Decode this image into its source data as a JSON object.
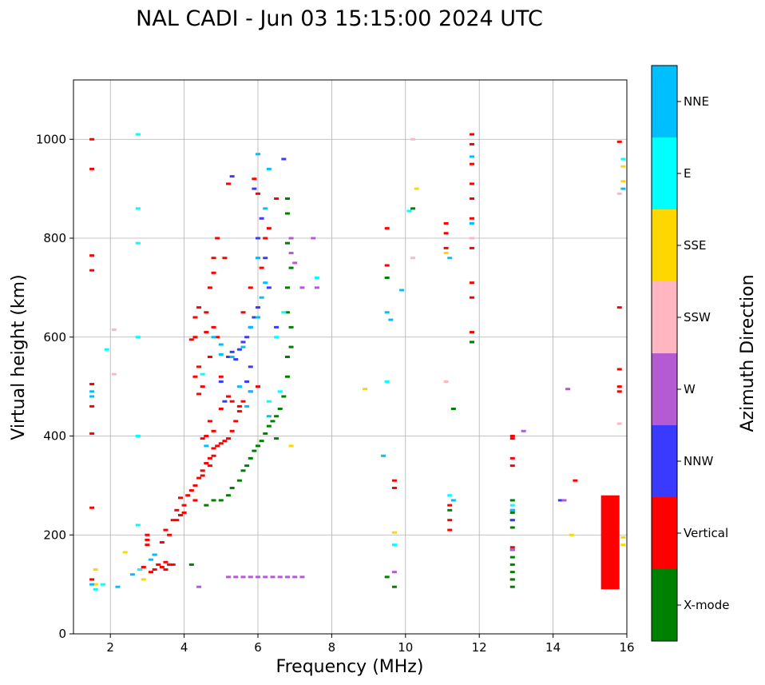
{
  "chart_data": {
    "type": "scatter",
    "title": "NAL CADI - Jun 03 15:15:00 2024 UTC",
    "xlabel": "Frequency (MHz)",
    "ylabel": "Virtual height (km)",
    "xlim": [
      1,
      16
    ],
    "ylim": [
      0,
      1120
    ],
    "x_ticks": [
      2,
      4,
      6,
      8,
      10,
      12,
      14,
      16
    ],
    "y_ticks": [
      0,
      200,
      400,
      600,
      800,
      1000
    ],
    "grid": true,
    "colorbar": {
      "label": "Azimuth Direction",
      "categories": [
        "X-mode",
        "Vertical",
        "NNW",
        "W",
        "SSW",
        "SSE",
        "E",
        "NNE"
      ],
      "colors": {
        "X-mode": "#008000",
        "Vertical": "#ff0000",
        "NNW": "#3a3aff",
        "W": "#b45ad2",
        "SSW": "#ffb6c1",
        "SSE": "#ffd700",
        "E": "#00ffff",
        "NNE": "#00bfff"
      }
    },
    "series": [
      {
        "name": "Vertical",
        "points": [
          [
            1.5,
            110
          ],
          [
            1.5,
            255
          ],
          [
            1.5,
            405
          ],
          [
            1.5,
            460
          ],
          [
            1.5,
            505
          ],
          [
            1.5,
            735
          ],
          [
            1.5,
            765
          ],
          [
            1.5,
            940
          ],
          [
            1.5,
            1000
          ],
          [
            2.8,
            130
          ],
          [
            2.9,
            135
          ],
          [
            3.0,
            180
          ],
          [
            3.1,
            125
          ],
          [
            3.2,
            130
          ],
          [
            3.3,
            140
          ],
          [
            3.4,
            135
          ],
          [
            3.5,
            130
          ],
          [
            3.5,
            145
          ],
          [
            3.6,
            140
          ],
          [
            3.7,
            140
          ],
          [
            3.0,
            190
          ],
          [
            3.0,
            200
          ],
          [
            3.2,
            160
          ],
          [
            3.4,
            185
          ],
          [
            3.5,
            210
          ],
          [
            3.6,
            200
          ],
          [
            3.7,
            230
          ],
          [
            3.8,
            250
          ],
          [
            3.8,
            230
          ],
          [
            3.9,
            240
          ],
          [
            3.9,
            275
          ],
          [
            4.0,
            245
          ],
          [
            4.0,
            260
          ],
          [
            4.1,
            280
          ],
          [
            4.2,
            290
          ],
          [
            4.3,
            300
          ],
          [
            4.3,
            270
          ],
          [
            4.4,
            315
          ],
          [
            4.5,
            320
          ],
          [
            4.5,
            330
          ],
          [
            4.6,
            345
          ],
          [
            4.7,
            340
          ],
          [
            4.7,
            355
          ],
          [
            4.8,
            360
          ],
          [
            4.8,
            375
          ],
          [
            4.9,
            380
          ],
          [
            5.0,
            385
          ],
          [
            5.1,
            390
          ],
          [
            5.2,
            395
          ],
          [
            5.3,
            410
          ],
          [
            5.4,
            430
          ],
          [
            5.5,
            450
          ],
          [
            5.6,
            470
          ],
          [
            5.8,
            490
          ],
          [
            6.0,
            500
          ],
          [
            5.2,
            480
          ],
          [
            5.0,
            455
          ],
          [
            4.8,
            410
          ],
          [
            4.6,
            400
          ],
          [
            4.5,
            395
          ],
          [
            4.7,
            430
          ],
          [
            4.4,
            485
          ],
          [
            4.4,
            540
          ],
          [
            4.3,
            520
          ],
          [
            4.5,
            500
          ],
          [
            4.6,
            610
          ],
          [
            4.3,
            600
          ],
          [
            4.2,
            595
          ],
          [
            4.3,
            640
          ],
          [
            4.4,
            660
          ],
          [
            4.6,
            650
          ],
          [
            4.7,
            700
          ],
          [
            4.8,
            730
          ],
          [
            4.8,
            760
          ],
          [
            4.9,
            800
          ],
          [
            5.1,
            760
          ],
          [
            4.8,
            620
          ],
          [
            4.7,
            560
          ],
          [
            5.3,
            470
          ],
          [
            5.5,
            460
          ],
          [
            5.0,
            520
          ],
          [
            4.9,
            600
          ],
          [
            5.6,
            650
          ],
          [
            5.8,
            700
          ],
          [
            6.1,
            740
          ],
          [
            6.2,
            800
          ],
          [
            6.0,
            890
          ],
          [
            5.2,
            910
          ],
          [
            5.9,
            920
          ],
          [
            6.3,
            820
          ],
          [
            6.5,
            880
          ],
          [
            9.7,
            310
          ],
          [
            9.7,
            295
          ],
          [
            9.5,
            820
          ],
          [
            9.5,
            745
          ],
          [
            11.2,
            210
          ],
          [
            11.2,
            230
          ],
          [
            11.2,
            260
          ],
          [
            11.1,
            830
          ],
          [
            11.1,
            810
          ],
          [
            11.1,
            780
          ],
          [
            11.8,
            590
          ],
          [
            11.8,
            610
          ],
          [
            11.8,
            680
          ],
          [
            11.8,
            710
          ],
          [
            11.8,
            780
          ],
          [
            11.8,
            800
          ],
          [
            11.8,
            840
          ],
          [
            11.8,
            880
          ],
          [
            11.8,
            910
          ],
          [
            11.8,
            950
          ],
          [
            11.8,
            990
          ],
          [
            11.8,
            1010
          ],
          [
            12.9,
            340
          ],
          [
            12.9,
            355
          ],
          [
            12.9,
            395
          ],
          [
            12.9,
            400
          ],
          [
            12.9,
            175
          ],
          [
            12.9,
            110
          ],
          [
            14.6,
            310
          ],
          [
            15.8,
            660
          ],
          [
            15.8,
            535
          ],
          [
            15.8,
            500
          ],
          [
            15.8,
            490
          ],
          [
            15.8,
            995
          ]
        ]
      },
      {
        "name": "X-mode",
        "points": [
          [
            5.0,
            270
          ],
          [
            5.2,
            280
          ],
          [
            5.3,
            295
          ],
          [
            5.5,
            310
          ],
          [
            5.6,
            330
          ],
          [
            5.7,
            340
          ],
          [
            5.8,
            355
          ],
          [
            5.9,
            370
          ],
          [
            6.0,
            380
          ],
          [
            6.1,
            390
          ],
          [
            6.2,
            405
          ],
          [
            6.3,
            420
          ],
          [
            6.4,
            430
          ],
          [
            6.5,
            440
          ],
          [
            6.6,
            455
          ],
          [
            6.7,
            480
          ],
          [
            6.8,
            520
          ],
          [
            6.8,
            560
          ],
          [
            6.9,
            580
          ],
          [
            6.9,
            620
          ],
          [
            6.8,
            650
          ],
          [
            6.8,
            700
          ],
          [
            6.9,
            740
          ],
          [
            6.8,
            790
          ],
          [
            6.8,
            850
          ],
          [
            6.8,
            880
          ],
          [
            4.6,
            260
          ],
          [
            4.8,
            270
          ],
          [
            6.5,
            395
          ],
          [
            9.5,
            115
          ],
          [
            9.7,
            95
          ],
          [
            9.5,
            720
          ],
          [
            10.2,
            860
          ],
          [
            11.3,
            455
          ],
          [
            11.2,
            250
          ],
          [
            12.9,
            95
          ],
          [
            12.9,
            110
          ],
          [
            12.9,
            125
          ],
          [
            12.9,
            140
          ],
          [
            12.9,
            155
          ],
          [
            12.9,
            170
          ],
          [
            12.9,
            215
          ],
          [
            12.9,
            230
          ],
          [
            12.9,
            245
          ],
          [
            12.9,
            270
          ],
          [
            11.8,
            590
          ],
          [
            4.2,
            140
          ]
        ]
      },
      {
        "name": "NNW",
        "points": [
          [
            5.2,
            560
          ],
          [
            5.3,
            570
          ],
          [
            5.4,
            555
          ],
          [
            5.5,
            575
          ],
          [
            5.6,
            590
          ],
          [
            5.7,
            600
          ],
          [
            5.8,
            620
          ],
          [
            5.9,
            640
          ],
          [
            6.0,
            660
          ],
          [
            5.1,
            470
          ],
          [
            5.0,
            510
          ],
          [
            5.8,
            540
          ],
          [
            5.7,
            510
          ],
          [
            6.3,
            700
          ],
          [
            6.2,
            760
          ],
          [
            6.0,
            800
          ],
          [
            6.1,
            840
          ],
          [
            5.9,
            900
          ],
          [
            5.3,
            925
          ],
          [
            6.7,
            960
          ],
          [
            6.5,
            620
          ],
          [
            12.9,
            230
          ],
          [
            12.9,
            250
          ],
          [
            14.2,
            270
          ]
        ]
      },
      {
        "name": "W",
        "points": [
          [
            5.2,
            115
          ],
          [
            5.4,
            115
          ],
          [
            5.6,
            115
          ],
          [
            5.8,
            115
          ],
          [
            6.0,
            115
          ],
          [
            6.2,
            115
          ],
          [
            6.4,
            115
          ],
          [
            6.6,
            115
          ],
          [
            6.8,
            115
          ],
          [
            7.0,
            115
          ],
          [
            7.2,
            115
          ],
          [
            4.4,
            95
          ],
          [
            6.9,
            770
          ],
          [
            7.0,
            750
          ],
          [
            6.9,
            800
          ],
          [
            7.5,
            800
          ],
          [
            7.6,
            700
          ],
          [
            7.2,
            700
          ],
          [
            9.7,
            125
          ],
          [
            12.9,
            170
          ],
          [
            13.2,
            410
          ],
          [
            14.4,
            495
          ],
          [
            14.3,
            270
          ]
        ]
      },
      {
        "name": "SSW",
        "points": [
          [
            2.1,
            615
          ],
          [
            2.1,
            525
          ],
          [
            10.2,
            760
          ],
          [
            10.2,
            1000
          ],
          [
            11.1,
            510
          ],
          [
            11.8,
            800
          ],
          [
            15.8,
            890
          ],
          [
            15.8,
            425
          ]
        ]
      },
      {
        "name": "SSE",
        "points": [
          [
            1.6,
            130
          ],
          [
            1.6,
            100
          ],
          [
            2.4,
            165
          ],
          [
            2.9,
            110
          ],
          [
            6.9,
            380
          ],
          [
            8.9,
            495
          ],
          [
            10.3,
            900
          ],
          [
            9.7,
            205
          ],
          [
            11.1,
            770
          ],
          [
            14.5,
            200
          ],
          [
            15.9,
            180
          ],
          [
            15.9,
            195
          ],
          [
            15.9,
            945
          ],
          [
            15.9,
            915
          ]
        ]
      },
      {
        "name": "E",
        "points": [
          [
            1.6,
            90
          ],
          [
            1.8,
            100
          ],
          [
            2.8,
            130
          ],
          [
            2.75,
            220
          ],
          [
            2.75,
            400
          ],
          [
            2.75,
            600
          ],
          [
            2.75,
            790
          ],
          [
            2.75,
            860
          ],
          [
            2.75,
            1010
          ],
          [
            4.5,
            525
          ],
          [
            6.3,
            470
          ],
          [
            6.6,
            490
          ],
          [
            6.5,
            600
          ],
          [
            6.7,
            650
          ],
          [
            7.6,
            720
          ],
          [
            9.5,
            510
          ],
          [
            9.7,
            180
          ],
          [
            10.1,
            855
          ],
          [
            11.2,
            280
          ],
          [
            12.9,
            260
          ],
          [
            15.9,
            960
          ],
          [
            1.9,
            575
          ]
        ]
      },
      {
        "name": "NNE",
        "points": [
          [
            1.5,
            100
          ],
          [
            1.5,
            480
          ],
          [
            1.5,
            490
          ],
          [
            2.2,
            95
          ],
          [
            2.6,
            120
          ],
          [
            3.1,
            150
          ],
          [
            3.2,
            160
          ],
          [
            4.6,
            380
          ],
          [
            4.8,
            600
          ],
          [
            5.0,
            585
          ],
          [
            5.0,
            565
          ],
          [
            5.3,
            560
          ],
          [
            5.6,
            580
          ],
          [
            5.8,
            620
          ],
          [
            6.0,
            640
          ],
          [
            6.1,
            680
          ],
          [
            6.2,
            710
          ],
          [
            6.0,
            760
          ],
          [
            6.2,
            860
          ],
          [
            6.3,
            940
          ],
          [
            6.0,
            970
          ],
          [
            5.7,
            460
          ],
          [
            5.5,
            500
          ],
          [
            5.8,
            490
          ],
          [
            6.3,
            440
          ],
          [
            6.0,
            760
          ],
          [
            9.5,
            650
          ],
          [
            9.6,
            635
          ],
          [
            9.9,
            695
          ],
          [
            9.4,
            360
          ],
          [
            11.3,
            270
          ],
          [
            11.2,
            760
          ],
          [
            11.8,
            830
          ],
          [
            11.8,
            965
          ],
          [
            12.9,
            250
          ],
          [
            15.9,
            900
          ]
        ]
      }
    ],
    "bands": [
      {
        "name": "Vertical",
        "x": [
          15.3,
          15.8
        ],
        "y": [
          90,
          280
        ]
      }
    ]
  }
}
